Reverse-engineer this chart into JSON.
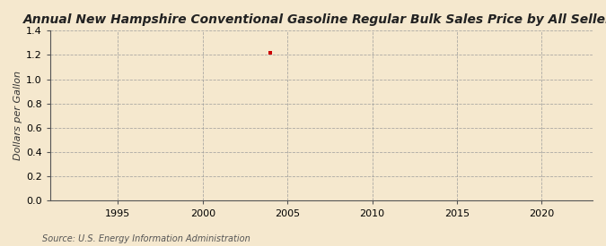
{
  "title": "Annual New Hampshire Conventional Gasoline Regular Bulk Sales Price by All Sellers",
  "ylabel": "Dollars per Gallon",
  "source": "Source: U.S. Energy Information Administration",
  "background_color": "#f5e8ce",
  "plot_background_color": "#f5e8ce",
  "data_x": [
    2004
  ],
  "data_y": [
    1.22
  ],
  "data_color": "#cc0000",
  "xmin": 1991,
  "xmax": 2023,
  "ymin": 0.0,
  "ymax": 1.4,
  "xticks": [
    1995,
    2000,
    2005,
    2010,
    2015,
    2020
  ],
  "yticks": [
    0.0,
    0.2,
    0.4,
    0.6,
    0.8,
    1.0,
    1.2,
    1.4
  ],
  "grid_color": "#999999",
  "title_fontsize": 10,
  "label_fontsize": 8,
  "tick_fontsize": 8,
  "source_fontsize": 7
}
